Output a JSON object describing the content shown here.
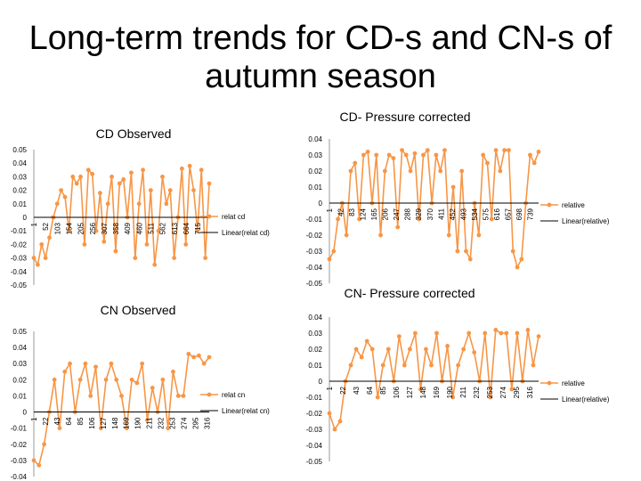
{
  "page": {
    "title": "Long-term trends for CD-s and CN-s of autumn season"
  },
  "colors": {
    "series": "#F79646",
    "line": "#000000",
    "axis": "#808080",
    "text": "#000000"
  },
  "chart_data": [
    {
      "id": "cd-observed",
      "type": "line",
      "title": "CD Observed",
      "ylim": [
        -0.05,
        0.05
      ],
      "yticks": [
        "0.05",
        "0.04",
        "0.03",
        "0.02",
        "0.01",
        "0",
        "-0.01",
        "-0.02",
        "-0.03",
        "-0.04",
        "-0.05"
      ],
      "x_ticks": [
        "1",
        "52",
        "103",
        "154",
        "205",
        "256",
        "307",
        "358",
        "409",
        "460",
        "511",
        "562",
        "613",
        "664",
        "715"
      ],
      "x_range": [
        1,
        765
      ],
      "legend": [
        "relat cd",
        "Linear(relat cd)"
      ],
      "trend": [
        0.0,
        0.0
      ],
      "values": [
        -0.03,
        -0.035,
        -0.02,
        -0.03,
        -0.015,
        0.0,
        0.01,
        0.02,
        0.015,
        -0.01,
        0.03,
        0.025,
        0.03,
        -0.02,
        0.035,
        0.032,
        -0.01,
        0.018,
        -0.018,
        0.01,
        0.03,
        -0.025,
        0.025,
        0.028,
        0.0,
        0.033,
        -0.03,
        0.01,
        0.035,
        -0.02,
        0.02,
        -0.035,
        -0.01,
        0.03,
        0.01,
        0.02,
        -0.03,
        0.0,
        0.036,
        -0.02,
        0.038,
        0.02,
        -0.01,
        0.035,
        -0.03,
        0.025
      ]
    },
    {
      "id": "cd-pressure-corrected",
      "type": "line",
      "title": "CD- Pressure corrected",
      "ylim": [
        -0.05,
        0.04
      ],
      "yticks": [
        "0.04",
        "0.03",
        "0.02",
        "0.01",
        "0",
        "-0.01",
        "-0.02",
        "-0.03",
        "-0.04",
        "-0.05"
      ],
      "x_ticks": [
        "1",
        "42",
        "83",
        "124",
        "165",
        "206",
        "247",
        "288",
        "329",
        "370",
        "411",
        "452",
        "493",
        "534",
        "575",
        "616",
        "657",
        "698",
        "739"
      ],
      "x_range": [
        1,
        770
      ],
      "legend": [
        "relative",
        "Linear(relative)"
      ],
      "trend": [
        0.0,
        0.0
      ],
      "values": [
        -0.035,
        -0.03,
        -0.01,
        0.0,
        -0.02,
        0.02,
        0.025,
        -0.01,
        0.03,
        0.032,
        0.0,
        0.03,
        -0.02,
        0.02,
        0.03,
        0.028,
        -0.015,
        0.033,
        0.03,
        0.02,
        0.031,
        -0.01,
        0.03,
        0.033,
        0.0,
        0.03,
        0.02,
        0.033,
        -0.02,
        0.01,
        -0.03,
        0.02,
        -0.03,
        -0.035,
        0.0,
        -0.02,
        0.03,
        0.025,
        -0.01,
        0.033,
        0.02,
        0.033,
        0.033,
        -0.03,
        -0.04,
        -0.035,
        0.0,
        0.03,
        0.025,
        0.032
      ]
    },
    {
      "id": "cn-observed",
      "type": "line",
      "title": "CN Observed",
      "ylim": [
        -0.04,
        0.05
      ],
      "yticks": [
        "0.05",
        "0.04",
        "0.03",
        "0.02",
        "0.01",
        "0",
        "-0.01",
        "-0.02",
        "-0.03",
        "-0.04"
      ],
      "x_ticks": [
        "1",
        "22",
        "43",
        "64",
        "85",
        "106",
        "127",
        "148",
        "169",
        "190",
        "211",
        "232",
        "253",
        "274",
        "295",
        "316"
      ],
      "x_range": [
        1,
        320
      ],
      "legend": [
        "relat cn",
        "Linear(relat cn)"
      ],
      "trend": [
        0.0,
        0.0
      ],
      "values": [
        -0.03,
        -0.033,
        -0.02,
        0.0,
        0.02,
        -0.01,
        0.025,
        0.03,
        0.0,
        0.02,
        0.03,
        0.01,
        0.028,
        -0.01,
        0.02,
        0.03,
        0.02,
        0.01,
        -0.01,
        0.02,
        0.018,
        0.03,
        -0.005,
        0.015,
        0.0,
        0.02,
        -0.01,
        0.025,
        0.01,
        0.01,
        0.036,
        0.034,
        0.035,
        0.03,
        0.034
      ]
    },
    {
      "id": "cn-pressure-corrected",
      "type": "line",
      "title": "CN- Pressure corrected",
      "ylim": [
        -0.05,
        0.04
      ],
      "yticks": [
        "0.04",
        "0.03",
        "0.02",
        "0.01",
        "0",
        "-0.01",
        "-0.02",
        "-0.03",
        "-0.04",
        "-0.05"
      ],
      "x_ticks": [
        "1",
        "22",
        "43",
        "64",
        "85",
        "106",
        "127",
        "148",
        "169",
        "190",
        "211",
        "232",
        "253",
        "274",
        "295",
        "316"
      ],
      "x_range": [
        1,
        330
      ],
      "legend": [
        "relative",
        "Linear(relative)"
      ],
      "trend": [
        0.0,
        0.0
      ],
      "values": [
        -0.02,
        -0.03,
        -0.025,
        0.0,
        0.01,
        0.02,
        0.015,
        0.025,
        0.02,
        -0.01,
        0.01,
        0.02,
        0.0,
        0.028,
        0.01,
        0.02,
        0.03,
        -0.005,
        0.02,
        0.01,
        0.03,
        0.0,
        0.022,
        -0.01,
        0.01,
        0.02,
        0.03,
        0.018,
        0.0,
        0.03,
        -0.01,
        0.032,
        0.03,
        0.03,
        -0.005,
        0.03,
        0.0,
        0.032,
        0.01,
        0.028
      ]
    }
  ]
}
